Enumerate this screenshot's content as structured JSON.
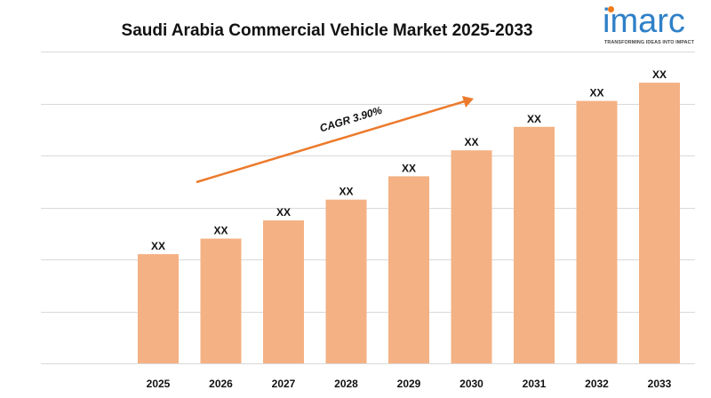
{
  "title": "Saudi Arabia Commercial Vehicle Market 2025-2033",
  "logo": {
    "wordmark": "imarc",
    "tagline": "TRANSFORMING IDEAS INTO IMPACT",
    "colors": {
      "wordmark": "#2f80c8",
      "dot": "#f07a1a"
    }
  },
  "annotation": {
    "text": "CAGR  3.90%",
    "color": "#ec7a2c"
  },
  "colors": {
    "bar": "#f4b183",
    "grid": "#d9d9d9",
    "arrow": "#ec7a2c"
  },
  "chart_data": {
    "type": "bar",
    "title": "Saudi Arabia Commercial Vehicle Market 2025-2033",
    "xlabel": "",
    "ylabel": "",
    "categories": [
      "2025",
      "2026",
      "2027",
      "2028",
      "2029",
      "2030",
      "2031",
      "2032",
      "2033"
    ],
    "values": [
      21,
      24,
      27.5,
      31.5,
      36,
      41,
      45.5,
      50.5,
      54
    ],
    "data_labels": [
      "XX",
      "XX",
      "XX",
      "XX",
      "XX",
      "XX",
      "XX",
      "XX",
      "XX"
    ],
    "ylim": [
      0,
      60
    ],
    "grid": true,
    "legend": "none"
  }
}
